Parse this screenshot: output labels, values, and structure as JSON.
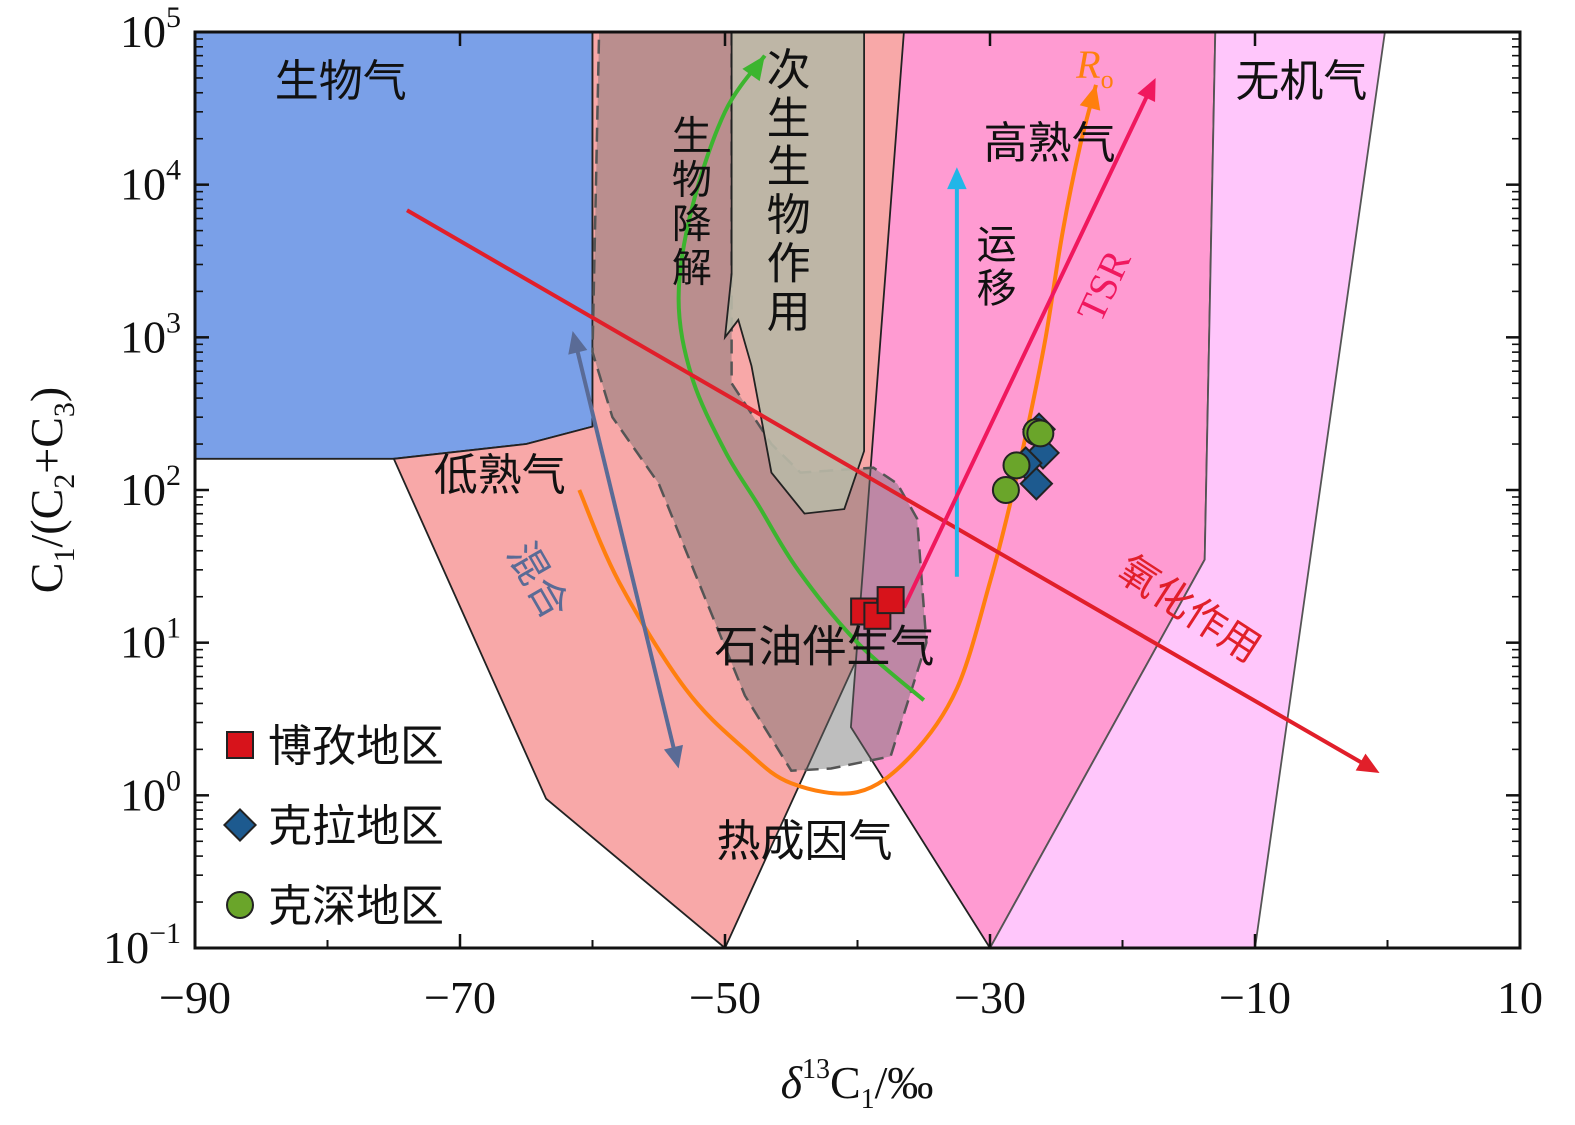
{
  "chart_data": {
    "type": "scatter",
    "xlabel": {
      "delta": "δ",
      "sup": "13",
      "base": "C",
      "sub": "1",
      "unit": "/‰"
    },
    "ylabel": {
      "parts": [
        {
          "t": "C",
          "s": "n"
        },
        {
          "t": "1",
          "s": "sub"
        },
        {
          "t": "/(C",
          "s": "n"
        },
        {
          "t": "2",
          "s": "sub"
        },
        {
          "t": "+C",
          "s": "n"
        },
        {
          "t": "3",
          "s": "sub"
        },
        {
          "t": ")",
          "s": "n"
        }
      ]
    },
    "xlim": [
      -90,
      10
    ],
    "ylim": [
      0.1,
      100000
    ],
    "y_scale": "log",
    "x_ticks": [
      "−90",
      "−70",
      "−50",
      "−30",
      "−10",
      "10"
    ],
    "x_tick_values": [
      -90,
      -70,
      -50,
      -30,
      -10,
      10
    ],
    "y_ticks": [
      {
        "base": "10",
        "exp": "−1"
      },
      {
        "base": "10",
        "exp": "0"
      },
      {
        "base": "10",
        "exp": "1"
      },
      {
        "base": "10",
        "exp": "2"
      },
      {
        "base": "10",
        "exp": "3"
      },
      {
        "base": "10",
        "exp": "4"
      },
      {
        "base": "10",
        "exp": "5"
      }
    ],
    "y_tick_values": [
      0.1,
      1,
      10,
      100,
      1000,
      10000,
      100000
    ],
    "zones": [
      {
        "name": "生物气",
        "color": "#7aa0e8",
        "stroke": "#222222",
        "dashed": false,
        "opacity": 1,
        "polygon": [
          [
            -90,
            100000
          ],
          [
            -60,
            100000
          ],
          [
            -60,
            260
          ],
          [
            -65,
            200
          ],
          [
            -75,
            160
          ],
          [
            -90,
            160
          ]
        ]
      },
      {
        "name": "热成因气",
        "color": "#f8a8a8",
        "stroke": "#222222",
        "dashed": false,
        "opacity": 1,
        "polygon": [
          [
            -75,
            160
          ],
          [
            -65,
            200
          ],
          [
            -60,
            260
          ],
          [
            -60,
            100000
          ],
          [
            -30,
            100000
          ],
          [
            -40,
            8
          ],
          [
            -50,
            0.1
          ],
          [
            -50,
            0.1
          ],
          [
            -63.5,
            0.95
          ],
          [
            -75,
            160
          ]
        ],
        "label_polygon": [
          [
            -75,
            160
          ],
          [
            -65,
            200
          ],
          [
            -60,
            260
          ],
          [
            -60,
            100000
          ],
          [
            -36.5,
            100000
          ],
          [
            -30,
            0.1
          ],
          [
            -50,
            0.1
          ],
          [
            -63.5,
            0.95
          ]
        ]
      },
      {
        "name": "高熟气",
        "color": "#ff9bd2",
        "stroke": "#222222",
        "dashed": false,
        "opacity": 1,
        "polygon": [
          [
            -36.5,
            100000
          ],
          [
            -13,
            100000
          ],
          [
            -13.8,
            35
          ],
          [
            -30,
            0.1
          ],
          [
            -40.5,
            2.8
          ]
        ]
      },
      {
        "name": "无机气",
        "color": "#ffc6fb",
        "stroke": "#555555",
        "dashed": false,
        "opacity": 1,
        "polygon": [
          [
            -13,
            100000
          ],
          [
            -0.2,
            100000
          ],
          [
            -10,
            0.1
          ],
          [
            -30,
            0.1
          ],
          [
            -13.8,
            35
          ]
        ]
      },
      {
        "name": "石油伴生气",
        "color": "#6e6e6e",
        "stroke": "#555555",
        "dashed": true,
        "opacity": 0.45,
        "polygon": [
          [
            -59.5,
            100000
          ],
          [
            -49.5,
            100000
          ],
          [
            -49.5,
            500
          ],
          [
            -46.5,
            200
          ],
          [
            -44.3,
            130
          ],
          [
            -38.8,
            140
          ],
          [
            -37,
            110
          ],
          [
            -35.5,
            65
          ],
          [
            -34.8,
            10
          ],
          [
            -37.5,
            1.8
          ],
          [
            -42,
            1.5
          ],
          [
            -45,
            1.45
          ],
          [
            -48.5,
            4.5
          ],
          [
            -52,
            25
          ],
          [
            -55,
            110
          ],
          [
            -58.5,
            300
          ],
          [
            -60,
            800
          ]
        ]
      },
      {
        "name": "次生生物作用",
        "color": "#b8b7a6",
        "stroke": "#222222",
        "dashed": false,
        "opacity": 0.92,
        "polygon": [
          [
            -49.5,
            100000
          ],
          [
            -39.5,
            100000
          ],
          [
            -39.5,
            180
          ],
          [
            -41,
            75
          ],
          [
            -44,
            70
          ],
          [
            -46.5,
            130
          ],
          [
            -48,
            650
          ],
          [
            -49,
            1300
          ],
          [
            -50,
            1000
          ],
          [
            -49.5,
            2600
          ]
        ]
      }
    ],
    "zone_labels": [
      {
        "text": "生物气",
        "x": -79,
        "y": 38000,
        "vertical": false
      },
      {
        "text": "次生生物作用",
        "x": -45.2,
        "y": 45000,
        "vertical": true
      },
      {
        "text": "低熟气",
        "x": -67,
        "y": 100,
        "vertical": false
      },
      {
        "text": "石油伴生气",
        "x": -42.5,
        "y": 7.5,
        "vertical": false
      },
      {
        "text": "热成因气",
        "x": -44,
        "y": 0.4,
        "vertical": false
      },
      {
        "text": "高熟气",
        "x": -25.5,
        "y": 15000,
        "vertical": false
      },
      {
        "text": "无机气",
        "x": -6.5,
        "y": 38000,
        "vertical": false
      }
    ],
    "arrows": [
      {
        "name": "氧化作用",
        "color": "#e11f2a",
        "from": [
          -74,
          6800
        ],
        "to": [
          -0.6,
          1.4
        ]
      },
      {
        "name": "混合",
        "color": "#5a6b96",
        "from": [
          -61.5,
          1100
        ],
        "to": [
          -53.5,
          1.5
        ],
        "double": true
      },
      {
        "name": "运移",
        "color": "#21b6e8",
        "from": [
          -32.5,
          27
        ],
        "to": [
          -32.5,
          13000
        ]
      },
      {
        "name": "TSR",
        "color": "#f0185e",
        "from": [
          -36.5,
          17
        ],
        "to": [
          -17.5,
          50000
        ]
      }
    ],
    "process_labels": [
      {
        "text": "生物降解",
        "color": "#3cb52f",
        "x": -52.5,
        "y": 17000,
        "vertical": true
      },
      {
        "text": "运移",
        "color": "#21b6e8",
        "x": -29.5,
        "y": 3300,
        "vertical": true
      },
      {
        "text": "TSR",
        "color": "#f0185e",
        "x": -20.5,
        "y": 2000,
        "rotate": -65
      },
      {
        "text": "混合",
        "color": "#5a6b96",
        "x": -65,
        "y": 23,
        "rotate": 60
      },
      {
        "text": "氧化作用",
        "color": "#e11f2a",
        "x": -15.5,
        "y": 14,
        "rotate": 33
      }
    ],
    "ro_label": {
      "main": "R",
      "sub": "o",
      "color": "#ff7f0e",
      "x": -23.5,
      "y": 50000
    },
    "curves": [
      {
        "name": "生物降解",
        "color": "#3cb52f",
        "arrow": true,
        "points": [
          [
            -35,
            4.2
          ],
          [
            -40,
            10
          ],
          [
            -44.5,
            30
          ],
          [
            -47.5,
            80
          ],
          [
            -50,
            180
          ],
          [
            -52.5,
            550
          ],
          [
            -53.5,
            1800
          ],
          [
            -52.5,
            7000
          ],
          [
            -50,
            30000
          ],
          [
            -47,
            70000
          ]
        ]
      },
      {
        "name": "Ro",
        "color": "#ff7f0e",
        "arrow": true,
        "points": [
          [
            -61,
            100
          ],
          [
            -58,
            25
          ],
          [
            -53,
            5
          ],
          [
            -48.5,
            2
          ],
          [
            -45,
            1.2
          ],
          [
            -40,
            1.05
          ],
          [
            -36,
            1.8
          ],
          [
            -32.5,
            5
          ],
          [
            -30,
            25
          ],
          [
            -28.5,
            80
          ],
          [
            -27,
            300
          ],
          [
            -25.8,
            1000
          ],
          [
            -24.5,
            5000
          ],
          [
            -23.2,
            18000
          ],
          [
            -22,
            45000
          ]
        ]
      }
    ],
    "series": [
      {
        "name": "博孜地区",
        "marker": "square",
        "color": "#d7131b",
        "points": [
          [
            -39.5,
            16
          ],
          [
            -38.5,
            15
          ],
          [
            -37.5,
            19
          ]
        ]
      },
      {
        "name": "克拉地区",
        "marker": "diamond",
        "color": "#1d5a8f",
        "points": [
          [
            -26.5,
            110
          ],
          [
            -26,
            175
          ],
          [
            -27.3,
            150
          ],
          [
            -26.3,
            250
          ]
        ]
      },
      {
        "name": "克深地区",
        "marker": "circle",
        "color": "#6aa52a",
        "points": [
          [
            -28.8,
            100
          ],
          [
            -28,
            145
          ],
          [
            -26.5,
            240
          ],
          [
            -26.2,
            235
          ]
        ]
      }
    ],
    "legend": {
      "position": "bottom-left",
      "items": [
        "博孜地区",
        "克拉地区",
        "克深地区"
      ]
    }
  }
}
